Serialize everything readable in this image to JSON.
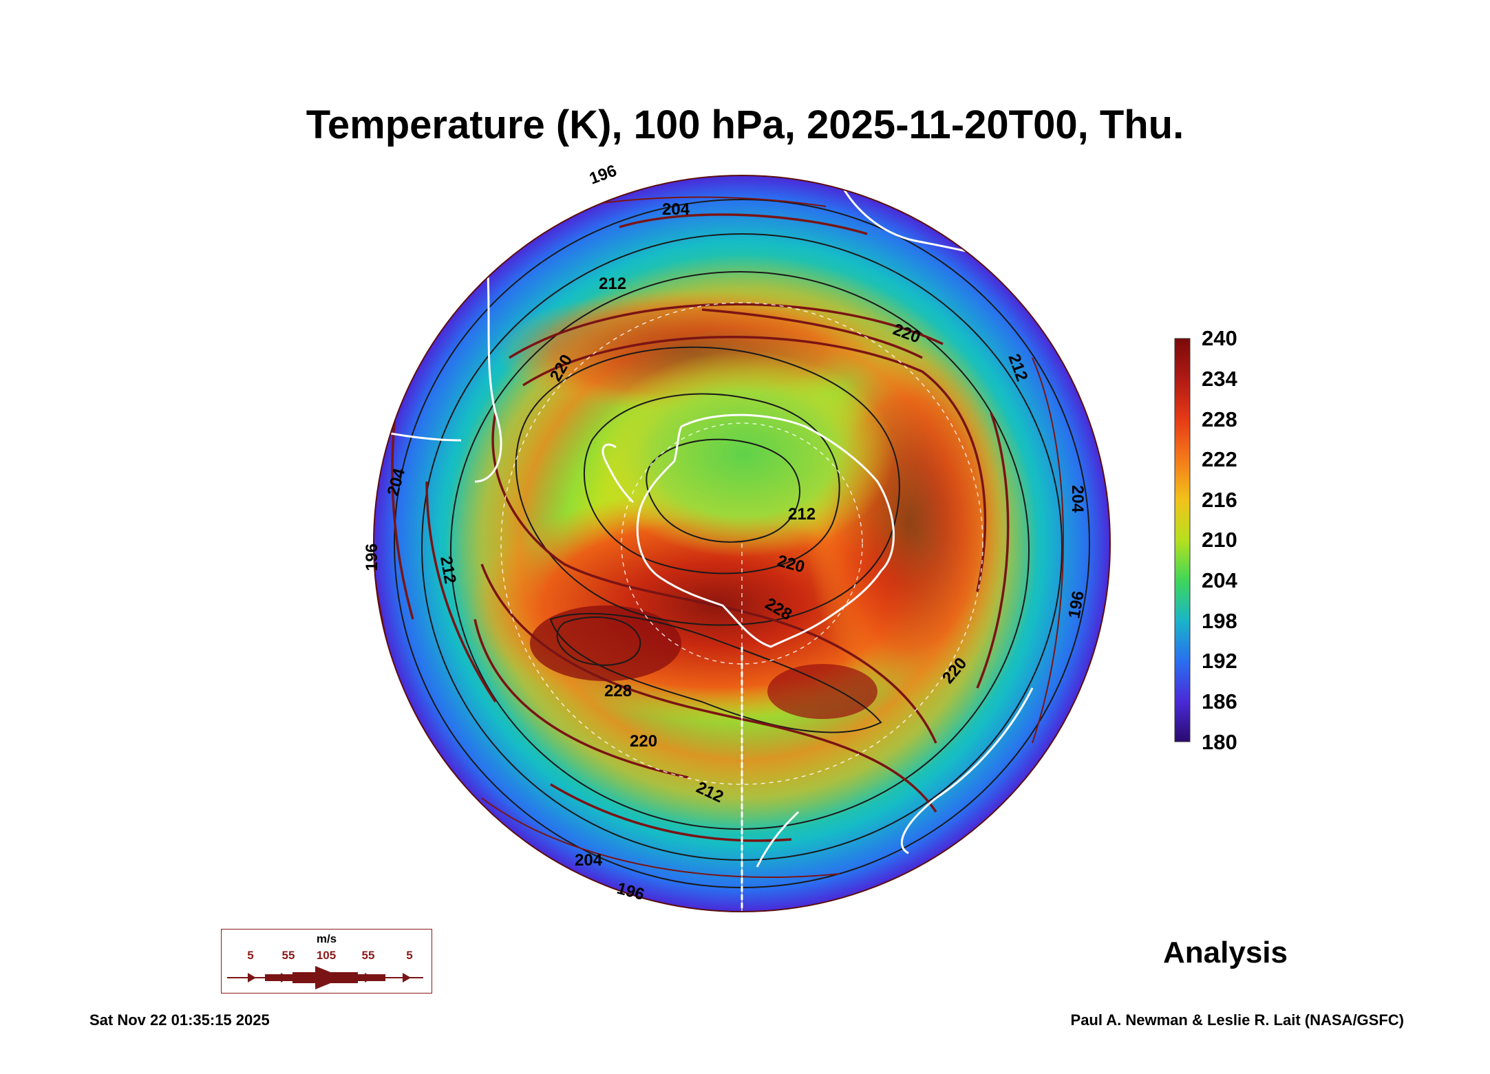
{
  "header": {
    "title": "Temperature (K), 100 hPa, 2025-11-20T00, Thu."
  },
  "colorbar": {
    "ticks": [
      "240",
      "234",
      "228",
      "222",
      "216",
      "210",
      "204",
      "198",
      "192",
      "186",
      "180"
    ],
    "colors": [
      "#7a0a0a",
      "#b01a14",
      "#e63a16",
      "#f57a1a",
      "#f2c21a",
      "#b6e01e",
      "#3fd65a",
      "#19b5c8",
      "#2a6ff0",
      "#4a2ad8",
      "#2a0a6e"
    ]
  },
  "contours": {
    "labels": [
      "196",
      "204",
      "212",
      "220",
      "228",
      "220",
      "212",
      "204",
      "196",
      "212",
      "220",
      "228",
      "220",
      "212",
      "204",
      "196",
      "212",
      "220",
      "196",
      "204"
    ]
  },
  "wind_legend": {
    "unit": "m/s",
    "labels": [
      "5",
      "55",
      "105",
      "55",
      "5"
    ]
  },
  "footer": {
    "label": "Analysis",
    "timestamp": "Sat Nov 22 01:35:15 2025",
    "credit": "Paul A. Newman & Leslie R. Lait (NASA/GSFC)"
  },
  "palette": {
    "coastline": "#ffffff",
    "streamline": "#7a1414",
    "contour": "#222222"
  }
}
